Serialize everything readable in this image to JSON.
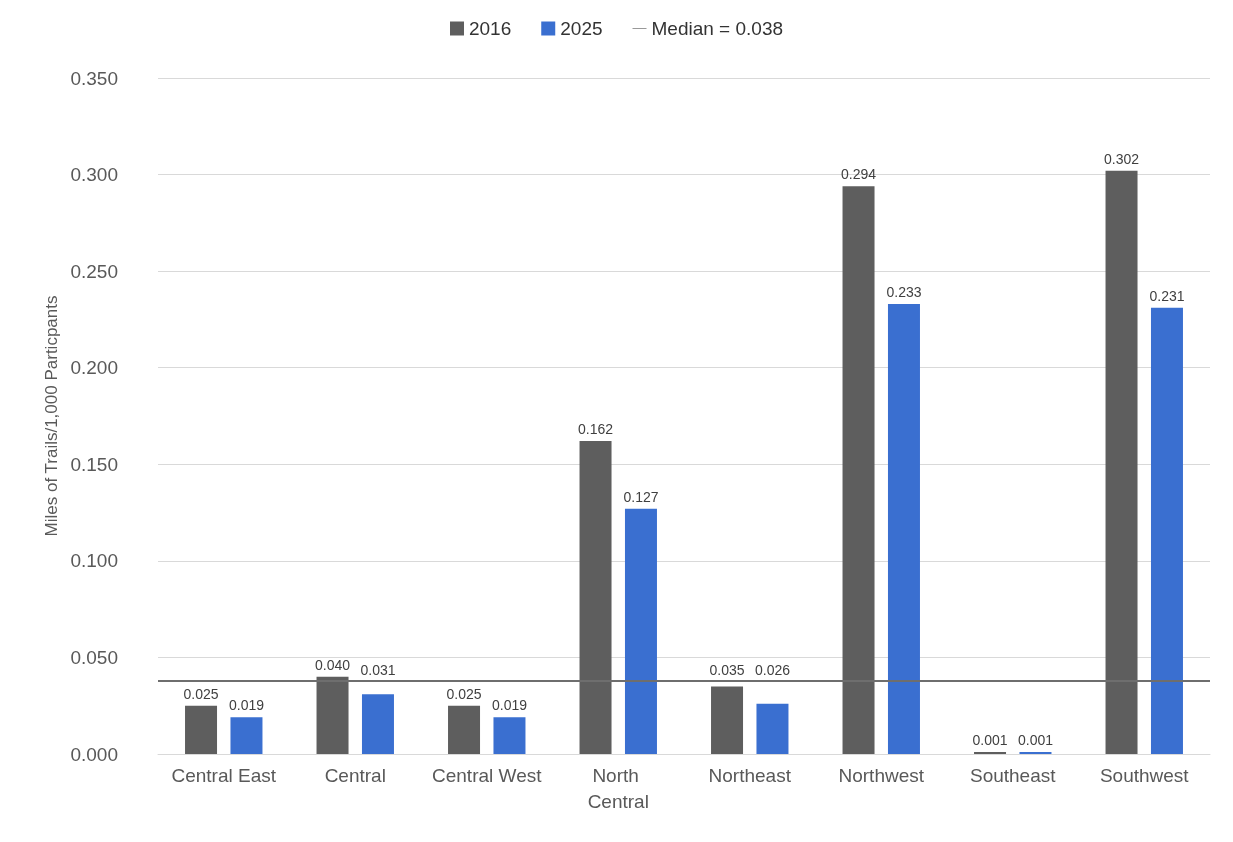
{
  "chart_data": {
    "type": "bar",
    "ylabel": "Miles of Trails/1,000 Particpants",
    "categories": [
      "Central East",
      "Central",
      "Central West",
      "North Central",
      "Northeast",
      "Northwest",
      "Southeast",
      "Southwest"
    ],
    "series": [
      {
        "name": "2016",
        "color": "#5e5e5e",
        "values": [
          0.025,
          0.04,
          0.025,
          0.162,
          0.035,
          0.294,
          0.001,
          0.302
        ],
        "value_labels": [
          "0.025",
          "0.040",
          "0.025",
          "0.162",
          "0.035",
          "0.294",
          "0.001",
          "0.302"
        ]
      },
      {
        "name": "2025",
        "color": "#3a6fd0",
        "values": [
          0.019,
          0.031,
          0.019,
          0.127,
          0.026,
          0.233,
          0.001,
          0.231
        ],
        "value_labels": [
          "0.019",
          "0.031",
          "0.019",
          "0.127",
          "0.026",
          "0.233",
          "0.001",
          "0.231"
        ]
      }
    ],
    "ylim": [
      0,
      0.35
    ],
    "yticks": [
      {
        "value": 0,
        "label": "0.000"
      },
      {
        "value": 0.05,
        "label": "0.050"
      },
      {
        "value": 0.1,
        "label": "0.100"
      },
      {
        "value": 0.15,
        "label": "0.150"
      },
      {
        "value": 0.2,
        "label": "0.200"
      },
      {
        "value": 0.25,
        "label": "0.250"
      },
      {
        "value": 0.3,
        "label": "0.300"
      },
      {
        "value": 0.35,
        "label": "0.350"
      }
    ],
    "ref_lines": [
      {
        "axis": "y",
        "value": 0.038,
        "label": "Median = 0.038",
        "color": "#6e6e6e"
      }
    ],
    "grid": "y",
    "legend": "top"
  }
}
